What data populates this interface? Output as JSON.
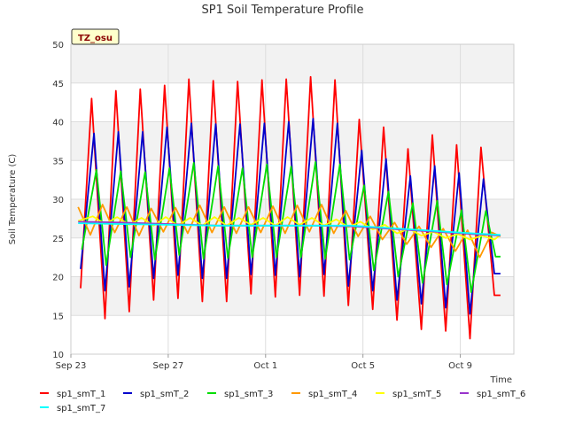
{
  "chart_data": {
    "type": "line",
    "title": "SP1 Soil Temperature Profile",
    "xlabel": "Time",
    "ylabel": "Soil Temperature (C)",
    "badge": "TZ_osu",
    "ylim": [
      10,
      50
    ],
    "yticks": [
      10,
      15,
      20,
      25,
      30,
      35,
      40,
      45,
      50
    ],
    "xlim_days": [
      0,
      18.2
    ],
    "xticks": [
      {
        "day": 0,
        "label": "Sep 23"
      },
      {
        "day": 4,
        "label": "Sep 27"
      },
      {
        "day": 8,
        "label": "Oct 1"
      },
      {
        "day": 12,
        "label": "Oct 5"
      },
      {
        "day": 16,
        "label": "Oct 9"
      }
    ],
    "legend_position": "bottom",
    "grid": true,
    "series": [
      {
        "name": "sp1_smT_1",
        "color": "#ff0000",
        "x": [
          0.4,
          0.85,
          1.4,
          1.85,
          2.4,
          2.85,
          3.4,
          3.85,
          4.4,
          4.85,
          5.4,
          5.85,
          6.4,
          6.85,
          7.4,
          7.85,
          8.4,
          8.85,
          9.4,
          9.85,
          10.4,
          10.85,
          11.4,
          11.85,
          12.4,
          12.85,
          13.4,
          13.85,
          14.4,
          14.85,
          15.4,
          15.85,
          16.4,
          16.85,
          17.4,
          17.65
        ],
        "y": [
          18.5,
          43,
          14.6,
          44,
          15.5,
          44.2,
          17,
          44.7,
          17.2,
          45.5,
          16.8,
          45.3,
          16.8,
          45.2,
          17.8,
          45.4,
          17.4,
          45.5,
          17.6,
          45.8,
          17.5,
          45.4,
          16.3,
          40.3,
          15.8,
          39.3,
          14.4,
          36.5,
          13.2,
          38.3,
          13,
          37,
          12,
          36.7,
          17.6,
          17.6
        ]
      },
      {
        "name": "sp1_smT_2",
        "color": "#0000cc",
        "x": [
          0.4,
          0.95,
          1.4,
          1.95,
          2.4,
          2.95,
          3.4,
          3.95,
          4.4,
          4.95,
          5.4,
          5.95,
          6.4,
          6.95,
          7.4,
          7.95,
          8.4,
          8.95,
          9.4,
          9.95,
          10.4,
          10.95,
          11.4,
          11.95,
          12.4,
          12.95,
          13.4,
          13.95,
          14.4,
          14.95,
          15.4,
          15.95,
          16.4,
          16.95,
          17.4,
          17.65
        ],
        "y": [
          21,
          38.5,
          18.2,
          38.7,
          18.7,
          38.7,
          19.8,
          39.3,
          20.2,
          39.8,
          19.8,
          39.7,
          19.8,
          39.7,
          20.3,
          39.8,
          20.2,
          40,
          20,
          40.4,
          20.3,
          39.8,
          18.8,
          36.3,
          18.2,
          35.2,
          17,
          33,
          16.5,
          34.3,
          16,
          33.4,
          15.2,
          32.6,
          20.4,
          20.4
        ]
      },
      {
        "name": "sp1_smT_3",
        "color": "#00dd00",
        "x": [
          0.45,
          1.05,
          1.45,
          2.05,
          2.45,
          3.05,
          3.45,
          4.05,
          4.45,
          5.05,
          5.45,
          6.05,
          6.45,
          7.05,
          7.45,
          8.05,
          8.45,
          9.05,
          9.45,
          10.05,
          10.45,
          11.05,
          11.45,
          12.05,
          12.45,
          13.05,
          13.45,
          14.05,
          14.45,
          15.05,
          15.45,
          16.05,
          16.45,
          17.05,
          17.45,
          17.65
        ],
        "y": [
          23.5,
          33.8,
          21.5,
          33.6,
          22.5,
          33.5,
          22.2,
          34,
          22.8,
          34.7,
          22.3,
          34.3,
          22.4,
          34,
          22.5,
          34.5,
          22.5,
          34.2,
          22.5,
          34.8,
          22.3,
          34.5,
          22.2,
          31.8,
          20.8,
          31,
          20,
          29.5,
          19.2,
          29.8,
          19,
          28.6,
          18,
          28.5,
          22.6,
          22.6
        ]
      },
      {
        "name": "sp1_smT_4",
        "color": "#ff9900",
        "x": [
          0.3,
          0.8,
          1.3,
          1.8,
          2.3,
          2.8,
          3.3,
          3.8,
          4.3,
          4.8,
          5.3,
          5.8,
          6.3,
          6.8,
          7.3,
          7.8,
          8.3,
          8.8,
          9.3,
          9.8,
          10.3,
          10.8,
          11.3,
          11.8,
          12.3,
          12.8,
          13.3,
          13.8,
          14.3,
          14.8,
          15.3,
          15.8,
          16.3,
          16.8,
          17.3,
          17.65
        ],
        "y": [
          29,
          25.4,
          29.3,
          25.7,
          29,
          25.3,
          28.8,
          25.8,
          28.9,
          25.6,
          29.2,
          25.7,
          29,
          25.6,
          29,
          25.7,
          29.1,
          25.6,
          29.2,
          25.8,
          29.3,
          25.6,
          28.5,
          25.2,
          27.8,
          24.8,
          27,
          24.2,
          26.5,
          23.8,
          26.2,
          23.3,
          26,
          22.5,
          25.7,
          25.2
        ]
      },
      {
        "name": "sp1_smT_5",
        "color": "#ffff00",
        "x": [
          0.3,
          0.9,
          1.4,
          1.9,
          2.4,
          2.9,
          3.4,
          3.9,
          4.4,
          4.9,
          5.4,
          5.9,
          6.4,
          6.9,
          7.4,
          7.9,
          8.4,
          8.9,
          9.4,
          9.9,
          10.4,
          10.9,
          11.4,
          11.9,
          12.4,
          12.9,
          13.4,
          13.9,
          14.4,
          14.9,
          15.4,
          15.9,
          16.4,
          16.9,
          17.4,
          17.65
        ],
        "y": [
          27.2,
          27.8,
          26.8,
          27.7,
          26.7,
          27.6,
          26.6,
          27.7,
          26.6,
          27.6,
          26.6,
          27.7,
          26.6,
          27.6,
          26.7,
          27.6,
          26.6,
          27.7,
          26.7,
          27.6,
          26.6,
          27.4,
          26.4,
          27.1,
          26.1,
          26.7,
          25.6,
          26.2,
          25.3,
          25.8,
          25,
          25.5,
          24.8,
          25.3,
          24.8,
          25.4
        ]
      },
      {
        "name": "sp1_smT_6",
        "color": "#9933cc",
        "x": [
          0.3,
          2,
          4,
          6,
          8,
          10,
          11.5,
          12.5,
          13.5,
          14.5,
          15.5,
          16.5,
          17.65
        ],
        "y": [
          27.1,
          27,
          26.8,
          26.6,
          26.6,
          26.6,
          26.5,
          26.3,
          26.1,
          25.9,
          25.7,
          25.5,
          25.3
        ]
      },
      {
        "name": "sp1_smT_7",
        "color": "#00ffff",
        "x": [
          0.3,
          2,
          4,
          6,
          8,
          10,
          11.5,
          12.5,
          13.5,
          14.5,
          15.5,
          16.5,
          17.65
        ],
        "y": [
          26.9,
          26.8,
          26.7,
          26.6,
          26.6,
          26.6,
          26.6,
          26.4,
          26.2,
          26,
          25.8,
          25.6,
          25.4
        ]
      }
    ]
  }
}
